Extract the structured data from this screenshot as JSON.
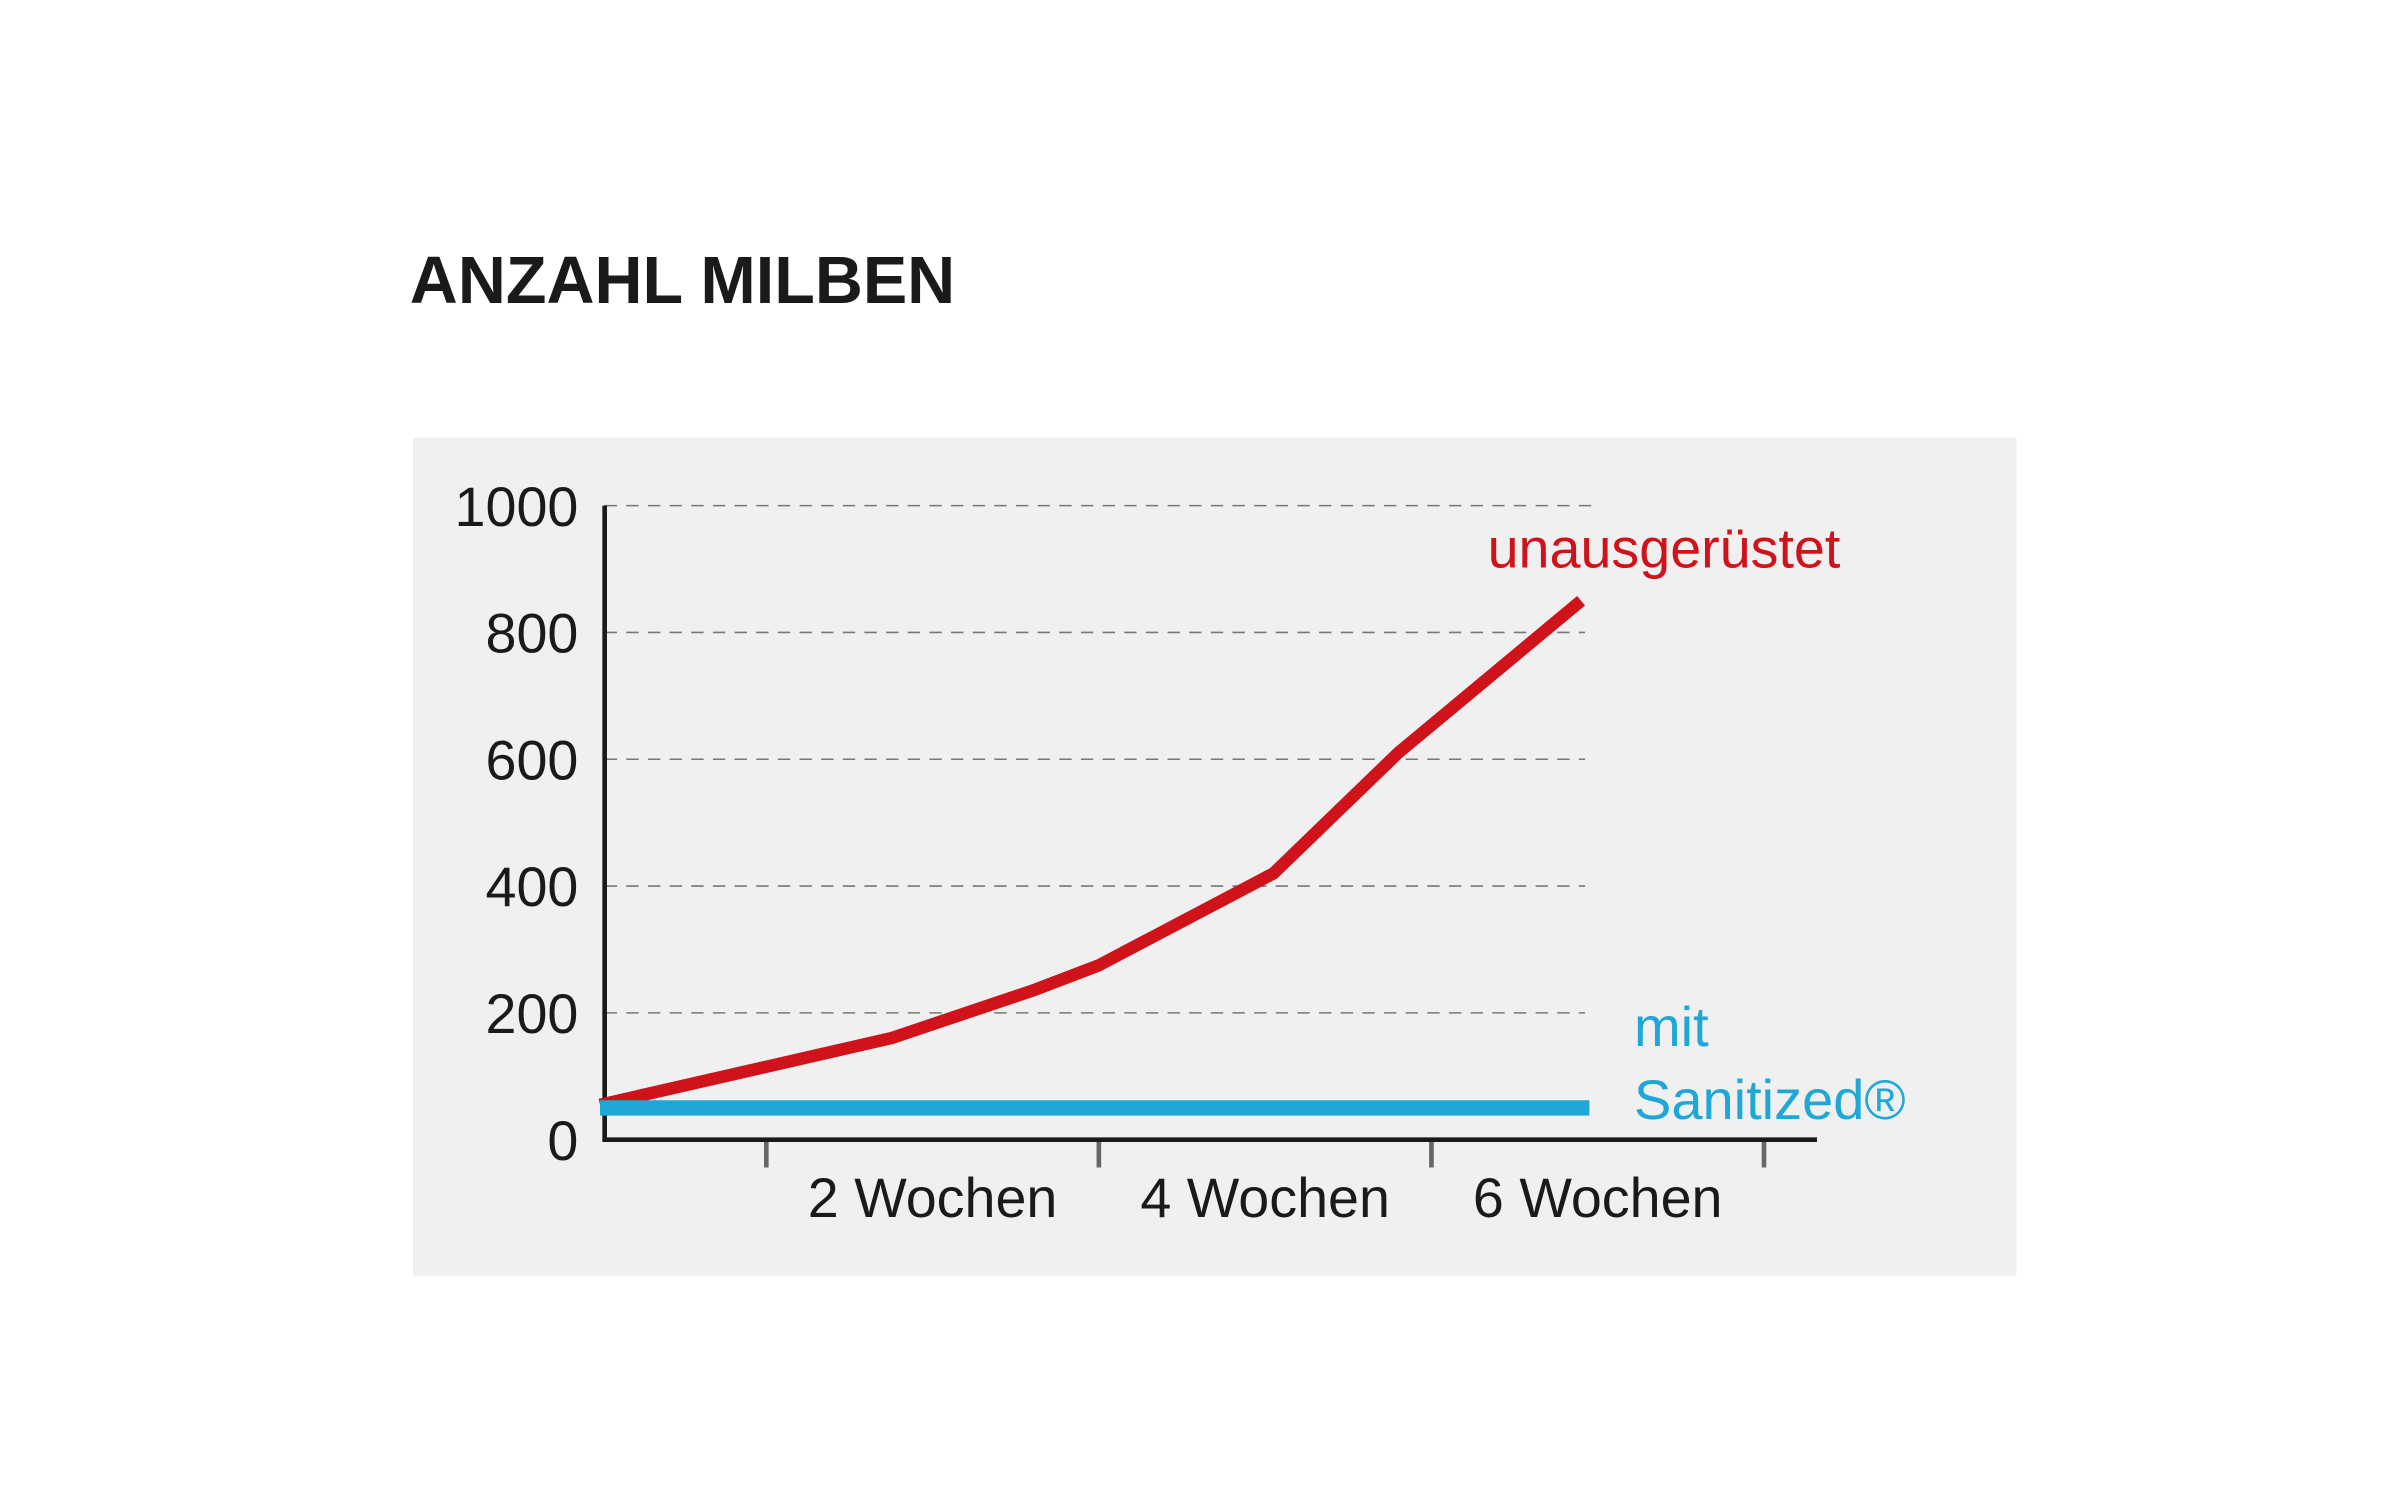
{
  "chart_data": {
    "type": "line",
    "title": "ANZAHL MILBEN",
    "xlim": [
      0,
      7.3
    ],
    "xticks": [
      {
        "value": 2,
        "label": "2 Wochen"
      },
      {
        "value": 4,
        "label": "4 Wochen"
      },
      {
        "value": 6,
        "label": "6 Wochen"
      }
    ],
    "xtick_marks": [
      1,
      3,
      5,
      7
    ],
    "ylim": [
      0,
      1000
    ],
    "yticks": [
      0,
      200,
      400,
      600,
      800,
      1000
    ],
    "grid": true,
    "series": [
      {
        "name": "unausgerüstet",
        "color": "#d0121b",
        "x": [
          0,
          1.75,
          2.6,
          3,
          4.05,
          4.8,
          5.9
        ],
        "values": [
          55,
          160,
          235,
          275,
          420,
          610,
          850
        ]
      },
      {
        "name": "mit Sanitized®",
        "color": "#1ea7d7",
        "x": [
          0,
          5.95
        ],
        "values": [
          50,
          50
        ]
      }
    ]
  }
}
